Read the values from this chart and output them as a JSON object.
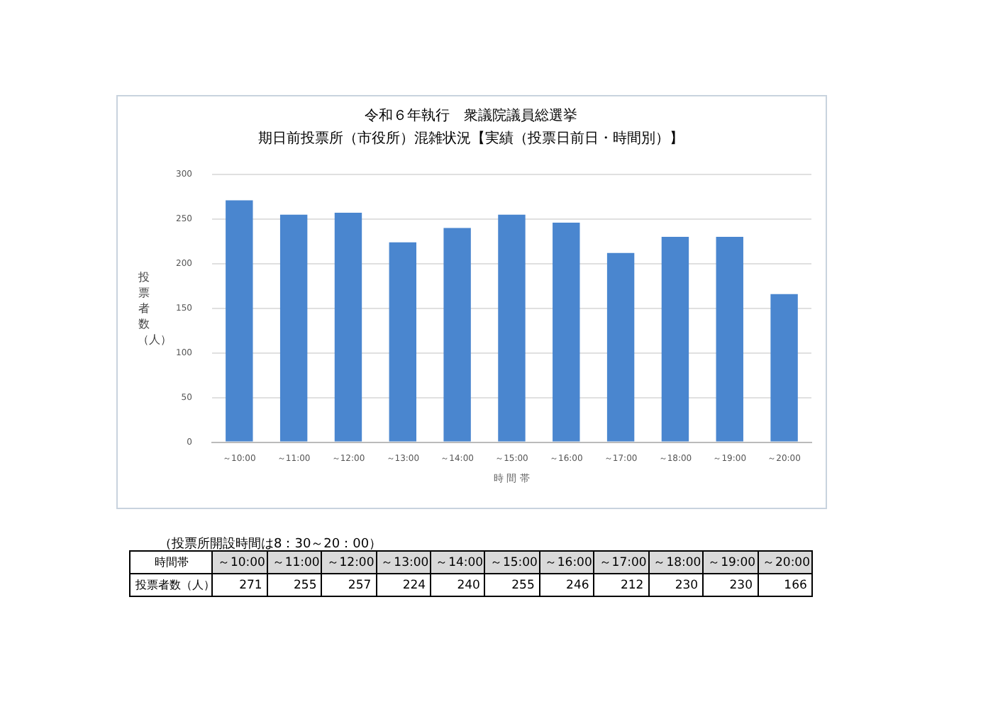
{
  "chart_data": {
    "type": "bar",
    "title": "令和６年執行　衆議院議員総選挙",
    "subtitle": "期日前投票所（市役所）混雑状況【実績（投票日前日・時間別）】",
    "xlabel": "時間帯",
    "ylabel": "投票者数（人）",
    "categories": [
      "～10:00",
      "～11:00",
      "～12:00",
      "～13:00",
      "～14:00",
      "～15:00",
      "～16:00",
      "～17:00",
      "～18:00",
      "～19:00",
      "～20:00"
    ],
    "values": [
      271,
      255,
      257,
      224,
      240,
      255,
      246,
      212,
      230,
      230,
      166
    ],
    "color": "#4a86cf",
    "ylim": [
      0,
      300
    ],
    "yticks": [
      0,
      50,
      100,
      150,
      200,
      250,
      300
    ],
    "grid": "y",
    "legend": false,
    "data_labels": true,
    "annotations": [
      "（投票所開設時間は8：30～20：00）",
      "投票者数（人）"
    ]
  }
}
